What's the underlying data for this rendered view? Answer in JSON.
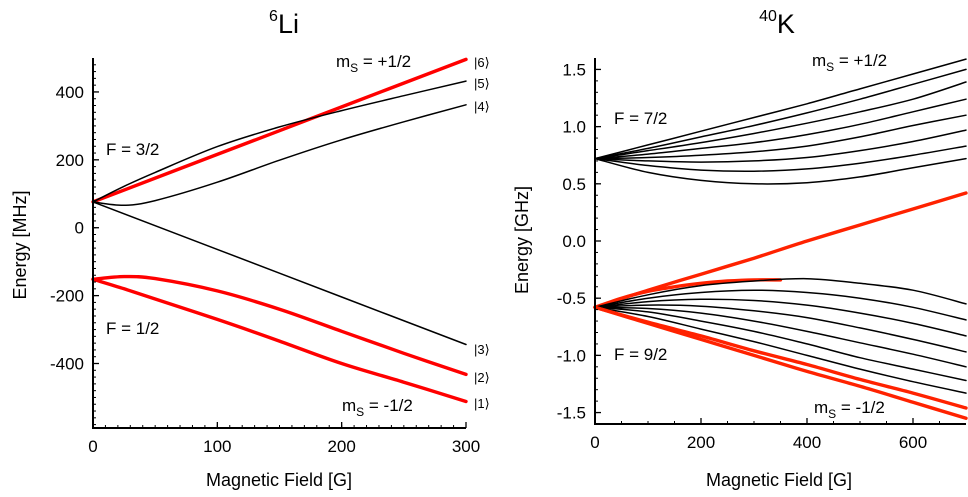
{
  "chart_data": [
    {
      "type": "line",
      "title_sup": "6",
      "title": "Li",
      "xlabel": "Magnetic Field [G]",
      "ylabel": "Energy [MHz]",
      "xlim": [
        0,
        300
      ],
      "ylim": [
        -590,
        500
      ],
      "xticks": [
        "0",
        "100",
        "200",
        "300"
      ],
      "yticks": [
        "-400",
        "-200",
        "0",
        "200",
        "400"
      ],
      "annotations": {
        "ms_plus": "m",
        "ms_plus_sub": "S",
        "ms_plus_val": " = +1/2",
        "ms_minus": "m",
        "ms_minus_sub": "S",
        "ms_minus_val": " = -1/2",
        "f_upper": "F = 3/2",
        "f_lower": "F = 1/2"
      },
      "state_labels": [
        "|6⟩",
        "|5⟩",
        "|4⟩",
        "|3⟩",
        "|2⟩",
        "|1⟩"
      ],
      "series": [
        {
          "color": "#ff0000",
          "x": [
            0,
            100,
            200,
            300
          ],
          "y": [
            76,
            216,
            356,
            496
          ]
        },
        {
          "color": "#000000",
          "x": [
            0,
            25,
            50,
            100,
            150,
            200,
            250,
            300
          ],
          "y": [
            76,
            122,
            163,
            239,
            297,
            345,
            389,
            432
          ]
        },
        {
          "color": "#000000",
          "x": [
            0,
            25,
            50,
            100,
            150,
            200,
            250,
            300
          ],
          "y": [
            76,
            66,
            80,
            134,
            199,
            259,
            312,
            362
          ]
        },
        {
          "color": "#000000",
          "x": [
            0,
            100,
            200,
            300
          ],
          "y": [
            76,
            -64,
            -204,
            -344
          ]
        },
        {
          "color": "#ff0000",
          "x": [
            0,
            25,
            50,
            100,
            150,
            200,
            250,
            300
          ],
          "y": [
            -152,
            -144,
            -150,
            -186,
            -240,
            -305,
            -370,
            -432
          ]
        },
        {
          "color": "#ff0000",
          "x": [
            0,
            25,
            50,
            100,
            150,
            200,
            250,
            300
          ],
          "y": [
            -152,
            -180,
            -210,
            -270,
            -334,
            -400,
            -455,
            -512
          ]
        }
      ]
    },
    {
      "type": "line",
      "title_sup": "40",
      "title": "K",
      "xlabel": "Magnetic Field [G]",
      "ylabel": "Energy [GHz]",
      "xlim": [
        0,
        700
      ],
      "ylim": [
        -1.6,
        1.6
      ],
      "xticks": [
        "0",
        "200",
        "400",
        "600"
      ],
      "yticks": [
        "-1.5",
        "-1.0",
        "-0.5",
        "0.0",
        "0.5",
        "1.0",
        "1.5"
      ],
      "annotations": {
        "ms_plus": "m",
        "ms_plus_sub": "S",
        "ms_plus_val": " = +1/2",
        "ms_minus": "m",
        "ms_minus_sub": "S",
        "ms_minus_val": " = -1/2",
        "f_upper": "F = 7/2",
        "f_lower": "F = 9/2"
      },
      "series": [
        {
          "color": "#000000",
          "x": [
            0,
            100,
            200,
            300,
            400,
            500,
            600,
            700
          ],
          "y": [
            0.72,
            0.84,
            0.96,
            1.08,
            1.2,
            1.33,
            1.46,
            1.59
          ]
        },
        {
          "color": "#000000",
          "x": [
            0,
            100,
            200,
            300,
            400,
            500,
            600,
            700
          ],
          "y": [
            0.72,
            0.81,
            0.91,
            1.01,
            1.12,
            1.24,
            1.37,
            1.5
          ]
        },
        {
          "color": "#000000",
          "x": [
            0,
            100,
            200,
            300,
            400,
            500,
            600,
            700
          ],
          "y": [
            0.72,
            0.79,
            0.86,
            0.94,
            1.03,
            1.13,
            1.24,
            1.39
          ]
        },
        {
          "color": "#000000",
          "x": [
            0,
            100,
            200,
            300,
            400,
            500,
            600,
            700
          ],
          "y": [
            0.72,
            0.76,
            0.81,
            0.86,
            0.93,
            1.02,
            1.13,
            1.24
          ]
        },
        {
          "color": "#000000",
          "x": [
            0,
            100,
            200,
            300,
            400,
            500,
            600,
            700
          ],
          "y": [
            0.72,
            0.73,
            0.75,
            0.78,
            0.83,
            0.91,
            1.01,
            1.1
          ]
        },
        {
          "color": "#000000",
          "x": [
            0,
            100,
            200,
            300,
            400,
            500,
            600,
            700
          ],
          "y": [
            0.72,
            0.7,
            0.69,
            0.7,
            0.73,
            0.79,
            0.87,
            0.97
          ]
        },
        {
          "color": "#000000",
          "x": [
            0,
            100,
            200,
            300,
            400,
            500,
            600,
            700
          ],
          "y": [
            0.72,
            0.66,
            0.62,
            0.61,
            0.63,
            0.68,
            0.75,
            0.83
          ]
        },
        {
          "color": "#000000",
          "x": [
            0,
            100,
            200,
            300,
            400,
            500,
            600,
            700
          ],
          "y": [
            0.72,
            0.6,
            0.53,
            0.5,
            0.51,
            0.56,
            0.64,
            0.72
          ]
        },
        {
          "color": "#ff2200",
          "x": [
            0,
            100,
            200,
            300,
            400,
            500,
            600,
            700
          ],
          "y": [
            -0.58,
            -0.43,
            -0.29,
            -0.15,
            -0.0,
            0.14,
            0.28,
            0.42
          ]
        },
        {
          "color": "#ff2200",
          "x": [
            0,
            50,
            100,
            150,
            200,
            250,
            300,
            350
          ],
          "y": [
            -0.58,
            -0.5,
            -0.44,
            -0.4,
            -0.37,
            -0.35,
            -0.34,
            -0.34
          ]
        },
        {
          "color": "#000000",
          "x": [
            0,
            100,
            200,
            300,
            400,
            500,
            600,
            700
          ],
          "y": [
            -0.58,
            -0.47,
            -0.39,
            -0.35,
            -0.33,
            -0.37,
            -0.43,
            -0.55
          ]
        },
        {
          "color": "#000000",
          "x": [
            0,
            100,
            200,
            300,
            400,
            500,
            600,
            700
          ],
          "y": [
            -0.58,
            -0.5,
            -0.45,
            -0.43,
            -0.45,
            -0.5,
            -0.58,
            -0.69
          ]
        },
        {
          "color": "#000000",
          "x": [
            0,
            100,
            200,
            300,
            400,
            500,
            600,
            700
          ],
          "y": [
            -0.58,
            -0.53,
            -0.51,
            -0.52,
            -0.56,
            -0.63,
            -0.72,
            -0.83
          ]
        },
        {
          "color": "#000000",
          "x": [
            0,
            100,
            200,
            300,
            400,
            500,
            600,
            700
          ],
          "y": [
            -0.58,
            -0.56,
            -0.57,
            -0.61,
            -0.67,
            -0.76,
            -0.86,
            -0.97
          ]
        },
        {
          "color": "#000000",
          "x": [
            0,
            100,
            200,
            300,
            400,
            500,
            600,
            700
          ],
          "y": [
            -0.58,
            -0.59,
            -0.63,
            -0.7,
            -0.79,
            -0.89,
            -0.99,
            -1.1
          ]
        },
        {
          "color": "#000000",
          "x": [
            0,
            100,
            200,
            300,
            400,
            500,
            600,
            700
          ],
          "y": [
            -0.58,
            -0.62,
            -0.7,
            -0.79,
            -0.9,
            -1.02,
            -1.12,
            -1.22
          ]
        },
        {
          "color": "#000000",
          "x": [
            0,
            100,
            200,
            300,
            400,
            500,
            600,
            700
          ],
          "y": [
            -0.58,
            -0.66,
            -0.77,
            -0.88,
            -1.0,
            -1.12,
            -1.23,
            -1.33
          ]
        },
        {
          "color": "#ff2200",
          "x": [
            0,
            100,
            200,
            300,
            400,
            500,
            600,
            700
          ],
          "y": [
            -0.58,
            -0.71,
            -0.83,
            -0.96,
            -1.08,
            -1.21,
            -1.33,
            -1.46
          ]
        },
        {
          "color": "#ff2200",
          "x": [
            0,
            100,
            200,
            300,
            400,
            500,
            600,
            700
          ],
          "y": [
            -0.58,
            -0.72,
            -0.86,
            -1.0,
            -1.14,
            -1.27,
            -1.41,
            -1.55
          ]
        }
      ]
    }
  ]
}
